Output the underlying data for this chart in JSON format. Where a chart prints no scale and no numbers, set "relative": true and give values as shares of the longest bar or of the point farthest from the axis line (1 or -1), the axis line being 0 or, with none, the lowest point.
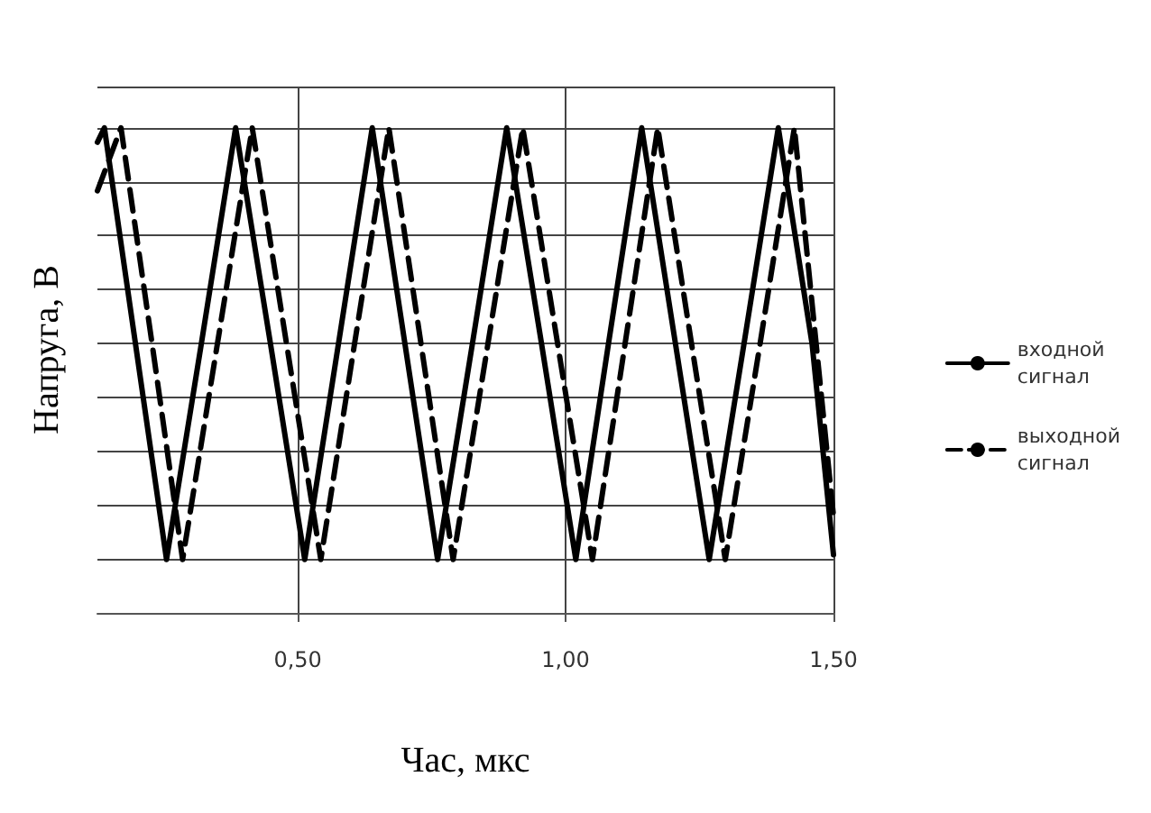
{
  "chart_data": {
    "type": "line",
    "xlabel": "Час, мкс",
    "ylabel": "Напруга, В",
    "relative": true,
    "xlim": [
      0.126,
      1.5
    ],
    "xticks": [
      {
        "value": 0.5,
        "label": "0,50"
      },
      {
        "value": 1.0,
        "label": "1,00"
      },
      {
        "value": 1.5,
        "label": "1,50"
      }
    ],
    "grid": true,
    "legend": "right",
    "marker": "none",
    "series": [
      {
        "name": "входной сигнал",
        "color": "#000000",
        "line_style": "solid",
        "x": [
          0.126,
          0.139,
          0.197,
          0.255,
          0.32,
          0.384,
          0.449,
          0.513,
          0.576,
          0.639,
          0.7,
          0.761,
          0.826,
          0.89,
          0.955,
          1.019,
          1.08,
          1.142,
          1.205,
          1.268,
          1.333,
          1.397,
          1.46,
          1.5
        ],
        "values": [
          0.97,
          1.0,
          0.555,
          0.11,
          0.555,
          1.0,
          0.555,
          0.11,
          0.555,
          1.0,
          0.555,
          0.11,
          0.555,
          1.0,
          0.555,
          0.11,
          0.555,
          1.0,
          0.555,
          0.11,
          0.555,
          1.0,
          0.555,
          0.12
        ]
      },
      {
        "name": "выходной сигнал",
        "color": "#000000",
        "line_style": "dashed",
        "x": [
          0.126,
          0.17,
          0.228,
          0.285,
          0.35,
          0.415,
          0.479,
          0.543,
          0.606,
          0.67,
          0.73,
          0.79,
          0.855,
          0.92,
          0.985,
          1.05,
          1.111,
          1.172,
          1.235,
          1.298,
          1.363,
          1.427,
          1.5
        ],
        "values": [
          0.87,
          1.0,
          0.555,
          0.11,
          0.555,
          1.0,
          0.555,
          0.11,
          0.555,
          1.0,
          0.555,
          0.11,
          0.555,
          1.0,
          0.555,
          0.11,
          0.555,
          1.0,
          0.555,
          0.11,
          0.555,
          1.0,
          0.2
        ]
      }
    ]
  }
}
